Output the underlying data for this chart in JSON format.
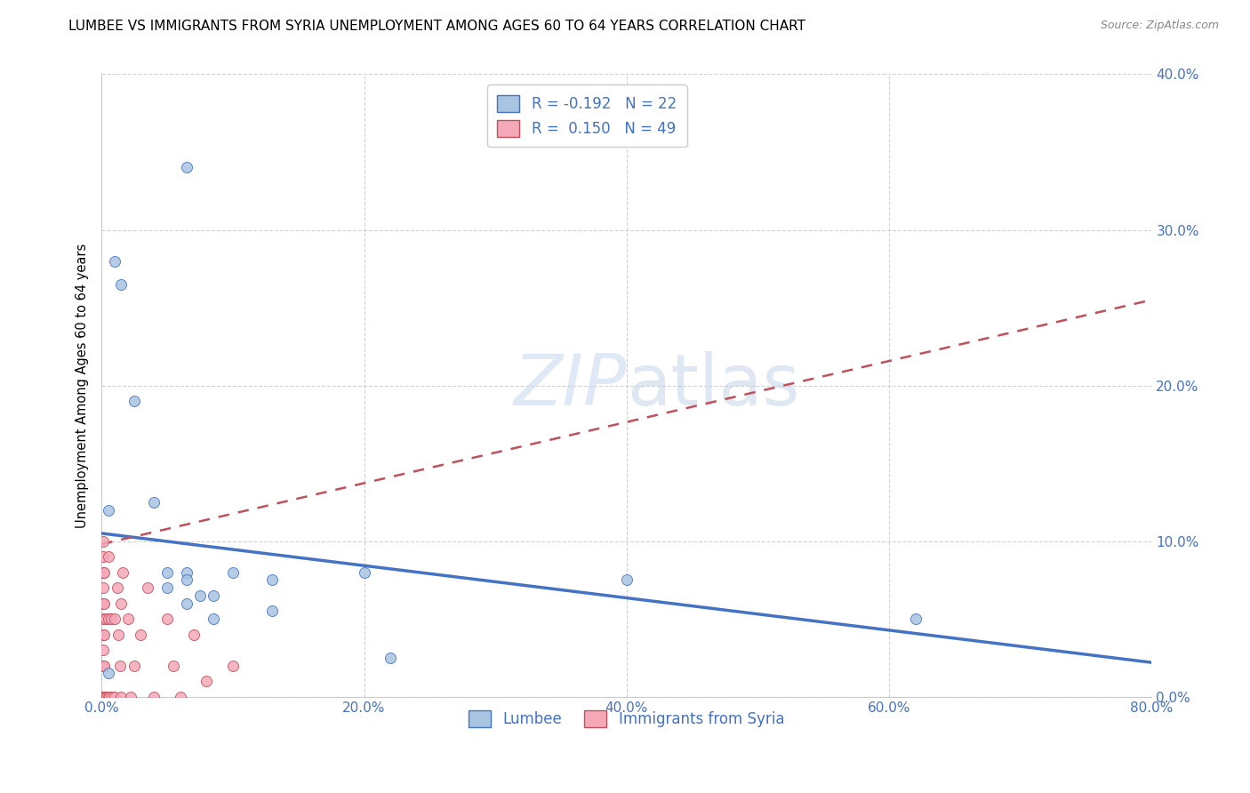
{
  "title": "LUMBEE VS IMMIGRANTS FROM SYRIA UNEMPLOYMENT AMONG AGES 60 TO 64 YEARS CORRELATION CHART",
  "source": "Source: ZipAtlas.com",
  "ylabel": "Unemployment Among Ages 60 to 64 years",
  "watermark_zip": "ZIP",
  "watermark_atlas": "atlas",
  "legend1_label": "R = -0.192   N = 22",
  "legend2_label": "R =  0.150   N = 49",
  "bottom_legend1": "Lumbee",
  "bottom_legend2": "Immigrants from Syria",
  "lumbee_color": "#a8c4e0",
  "syria_color": "#f4a8b8",
  "lumbee_line_color": "#4472c4",
  "syria_line_color": "#c0505a",
  "xlim": [
    0.0,
    0.8
  ],
  "ylim": [
    0.0,
    0.4
  ],
  "xticks": [
    0.0,
    0.2,
    0.4,
    0.6,
    0.8
  ],
  "yticks": [
    0.0,
    0.1,
    0.2,
    0.3,
    0.4
  ],
  "lumbee_x": [
    0.005,
    0.01,
    0.015,
    0.025,
    0.04,
    0.05,
    0.05,
    0.065,
    0.065,
    0.075,
    0.085,
    0.085,
    0.1,
    0.13,
    0.13,
    0.2,
    0.22,
    0.4,
    0.62,
    0.005,
    0.065,
    0.065
  ],
  "lumbee_y": [
    0.12,
    0.28,
    0.265,
    0.19,
    0.125,
    0.08,
    0.07,
    0.08,
    0.06,
    0.065,
    0.05,
    0.065,
    0.08,
    0.075,
    0.055,
    0.08,
    0.025,
    0.075,
    0.05,
    0.015,
    0.075,
    0.34
  ],
  "syria_x": [
    0.001,
    0.001,
    0.001,
    0.001,
    0.001,
    0.001,
    0.001,
    0.001,
    0.001,
    0.001,
    0.001,
    0.001,
    0.001,
    0.001,
    0.001,
    0.002,
    0.002,
    0.002,
    0.002,
    0.002,
    0.003,
    0.003,
    0.004,
    0.005,
    0.005,
    0.005,
    0.006,
    0.007,
    0.008,
    0.01,
    0.01,
    0.012,
    0.013,
    0.014,
    0.015,
    0.015,
    0.016,
    0.02,
    0.022,
    0.025,
    0.03,
    0.035,
    0.04,
    0.05,
    0.055,
    0.06,
    0.07,
    0.08,
    0.1
  ],
  "syria_y": [
    0.0,
    0.0,
    0.0,
    0.0,
    0.0,
    0.0,
    0.02,
    0.03,
    0.04,
    0.05,
    0.06,
    0.07,
    0.08,
    0.09,
    0.1,
    0.0,
    0.02,
    0.04,
    0.06,
    0.08,
    0.0,
    0.05,
    0.0,
    0.0,
    0.05,
    0.09,
    0.0,
    0.05,
    0.0,
    0.0,
    0.05,
    0.07,
    0.04,
    0.02,
    0.0,
    0.06,
    0.08,
    0.05,
    0.0,
    0.02,
    0.04,
    0.07,
    0.0,
    0.05,
    0.02,
    0.0,
    0.04,
    0.01,
    0.02
  ],
  "title_fontsize": 11,
  "axis_fontsize": 10.5,
  "tick_fontsize": 11,
  "marker_size": 75,
  "blue_text_color": "#4472c4",
  "background_color": "#ffffff",
  "grid_color": "#cccccc",
  "lumbee_line_y0": 0.105,
  "lumbee_line_y1": 0.022,
  "syria_line_y0": 0.098,
  "syria_line_y1": 0.255
}
